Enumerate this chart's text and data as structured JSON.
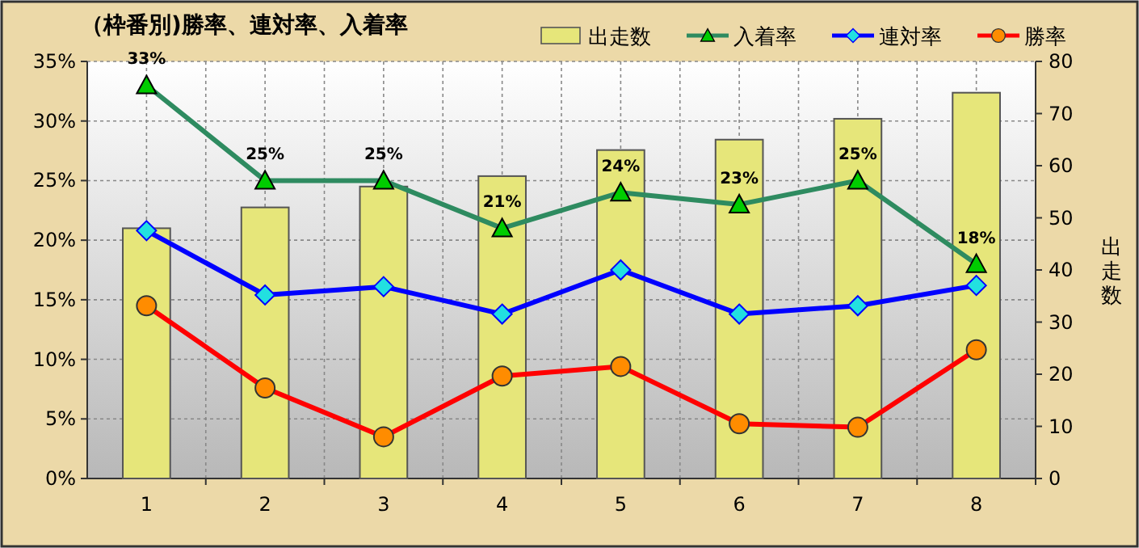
{
  "chart_data": {
    "type": "line",
    "title": "（枠番別)勝率、連対率、入着率",
    "categories": [
      "1",
      "2",
      "3",
      "4",
      "5",
      "6",
      "7",
      "8"
    ],
    "series": [
      {
        "name": "出走数",
        "type": "bar",
        "axis": "y2",
        "color": "#e6e67a",
        "values": [
          48,
          52,
          56,
          58,
          63,
          65,
          69,
          74
        ]
      },
      {
        "name": "入着率",
        "color": "#2e8b60",
        "marker": "triangle",
        "values": [
          33,
          25,
          25,
          21,
          24,
          23,
          25,
          18
        ],
        "value_labels": [
          "33%",
          "25%",
          "25%",
          "21%",
          "24%",
          "23%",
          "25%",
          "18%"
        ]
      },
      {
        "name": "連対率",
        "color": "#0000ff",
        "marker": "diamond",
        "values": [
          20.8,
          15.4,
          16.1,
          13.8,
          17.5,
          13.8,
          14.5,
          16.2
        ]
      },
      {
        "name": "勝率",
        "color": "#ff0000",
        "marker": "circle",
        "values": [
          14.5,
          7.6,
          3.5,
          8.6,
          9.4,
          4.6,
          4.3,
          10.8
        ]
      }
    ],
    "ylim": [
      0,
      35
    ],
    "yticks": [
      {
        "value": 0,
        "label": "0%"
      },
      {
        "value": 5,
        "label": "5%"
      },
      {
        "value": 10,
        "label": "10%"
      },
      {
        "value": 15,
        "label": "15%"
      },
      {
        "value": 20,
        "label": "20%"
      },
      {
        "value": 25,
        "label": "25%"
      },
      {
        "value": 30,
        "label": "30%"
      },
      {
        "value": 35,
        "label": "35%"
      }
    ],
    "y2lim": [
      0,
      80
    ],
    "y2ticks": [
      0,
      10,
      20,
      30,
      40,
      50,
      60,
      70,
      80
    ],
    "y2label": "出走数",
    "grid": true,
    "legend": "top right"
  }
}
